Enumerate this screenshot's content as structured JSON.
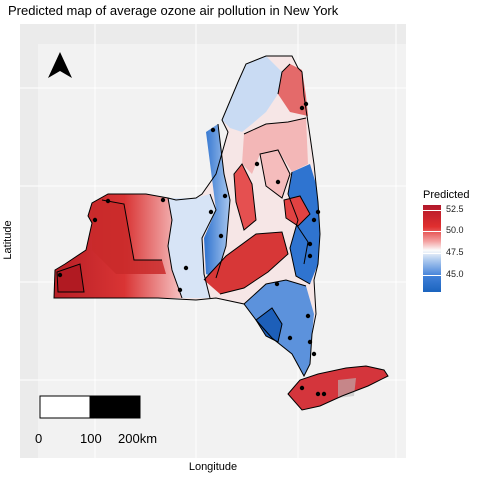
{
  "title": "Predicted map of average ozone air pollution in New York",
  "axes": {
    "xlabel": "Longitude",
    "ylabel": "Latitude"
  },
  "legend": {
    "title": "Predicted",
    "ticks": [
      "52.5",
      "50.0",
      "47.5",
      "45.0"
    ],
    "colors": {
      "high": "#b2182b",
      "mid": "#ffffff",
      "low": "#1b64be"
    }
  },
  "scale_bar": {
    "labels": [
      "0",
      "100",
      "200km"
    ]
  },
  "north_arrow": "north-arrow-icon"
}
